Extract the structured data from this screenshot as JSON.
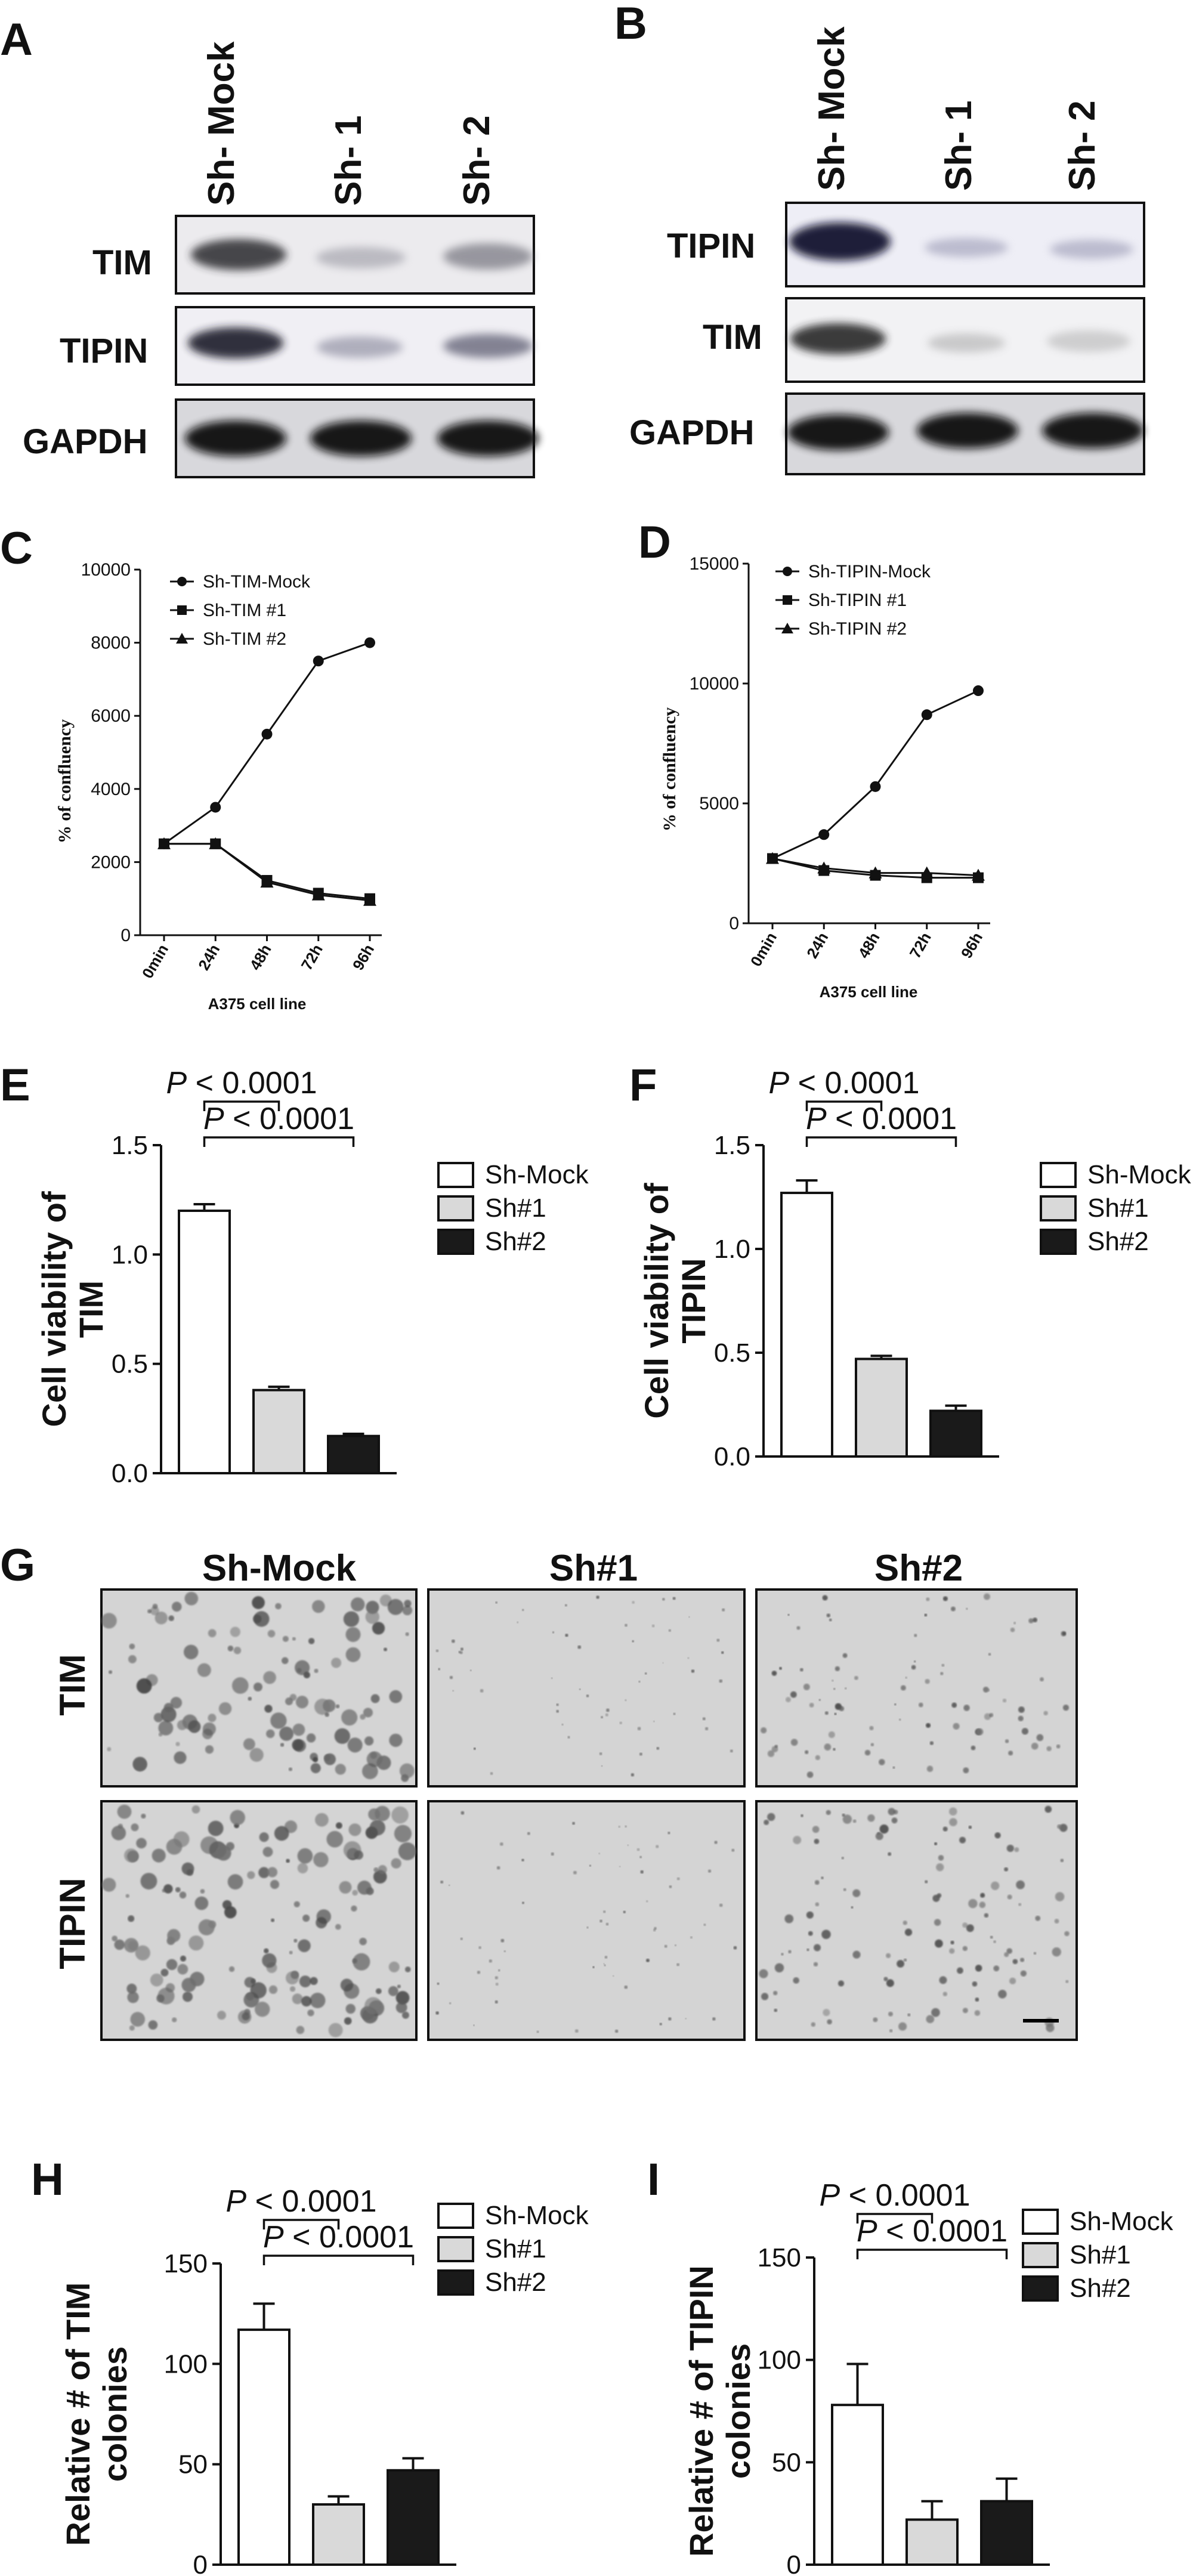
{
  "panels": {
    "A": "A",
    "B": "B",
    "C": "C",
    "D": "D",
    "E": "E",
    "F": "F",
    "G": "G",
    "H": "H",
    "I": "I"
  },
  "blot_A": {
    "lanes": [
      "Sh- Mock",
      "Sh- 1",
      "Sh- 2"
    ],
    "rows": [
      "TIM",
      "TIPIN",
      "GAPDH"
    ]
  },
  "blot_B": {
    "lanes": [
      "Sh- Mock",
      "Sh- 1",
      "Sh- 2"
    ],
    "rows": [
      "TIPIN",
      "TIM",
      "GAPDH"
    ]
  },
  "colony_G": {
    "columns": [
      "Sh-Mock",
      "Sh#1",
      "Sh#2"
    ],
    "rows": [
      "TIM",
      "TIPIN"
    ]
  },
  "colors": {
    "mock": "#ffffff",
    "sh1": "#d9d9d9",
    "sh2": "#1a1a1a",
    "axis": "#111111"
  },
  "chart_data": [
    {
      "id": "C",
      "type": "line",
      "x": [
        "0min",
        "24h",
        "48h",
        "72h",
        "96h"
      ],
      "xlabel": "A375 cell line",
      "ylabel": "% of confluency",
      "ylim": [
        0,
        10000
      ],
      "yticks": [
        "0",
        "2000",
        "4000",
        "6000",
        "8000",
        "10000"
      ],
      "series": [
        {
          "name": "Sh-TIM-Mock",
          "marker": "circle",
          "values": [
            2500,
            3500,
            5500,
            7500,
            8000
          ]
        },
        {
          "name": "Sh-TIM #1",
          "marker": "square",
          "values": [
            2500,
            2500,
            1500,
            1150,
            1000
          ]
        },
        {
          "name": "Sh-TIM #2",
          "marker": "triangle",
          "values": [
            2500,
            2500,
            1450,
            1100,
            950
          ]
        }
      ]
    },
    {
      "id": "D",
      "type": "line",
      "x": [
        "0min",
        "24h",
        "48h",
        "72h",
        "96h"
      ],
      "xlabel": "A375 cell line",
      "ylabel": "% of confluency",
      "ylim": [
        0,
        15000
      ],
      "yticks": [
        "0",
        "5000",
        "10000",
        "15000"
      ],
      "series": [
        {
          "name": "Sh-TIPIN-Mock",
          "marker": "circle",
          "values": [
            2700,
            3700,
            5700,
            8700,
            9700
          ]
        },
        {
          "name": "Sh-TIPIN #1",
          "marker": "square",
          "values": [
            2700,
            2200,
            2000,
            1900,
            1900
          ]
        },
        {
          "name": "Sh-TIPIN #2",
          "marker": "triangle",
          "values": [
            2700,
            2300,
            2100,
            2100,
            2000
          ]
        }
      ]
    },
    {
      "id": "E",
      "type": "bar",
      "categories": [
        "Sh-Mock",
        "Sh#1",
        "Sh#2"
      ],
      "values": [
        1.2,
        0.38,
        0.17
      ],
      "errors": [
        0.03,
        0.015,
        0.01
      ],
      "ylabel_lines": [
        "Cell viability of",
        "TIM"
      ],
      "ylim": [
        0,
        1.5
      ],
      "yticks": [
        "0.0",
        "0.5",
        "1.0",
        "1.5"
      ],
      "legend": [
        "Sh-Mock",
        "Sh#1",
        "Sh#2"
      ],
      "comparisons": [
        {
          "from": 0,
          "to": 1,
          "label_p": "P",
          "label_rest": " < 0.0001"
        },
        {
          "from": 0,
          "to": 2,
          "label_p": "P",
          "label_rest": " < 0.0001"
        }
      ]
    },
    {
      "id": "F",
      "type": "bar",
      "categories": [
        "Sh-Mock",
        "Sh#1",
        "Sh#2"
      ],
      "values": [
        1.27,
        0.47,
        0.22
      ],
      "errors": [
        0.06,
        0.015,
        0.025
      ],
      "ylabel_lines": [
        "Cell viability of",
        "TIPIN"
      ],
      "ylim": [
        0,
        1.5
      ],
      "yticks": [
        "0.0",
        "0.5",
        "1.0",
        "1.5"
      ],
      "legend": [
        "Sh-Mock",
        "Sh#1",
        "Sh#2"
      ],
      "comparisons": [
        {
          "from": 0,
          "to": 1,
          "label_p": "P",
          "label_rest": " < 0.0001"
        },
        {
          "from": 0,
          "to": 2,
          "label_p": "P",
          "label_rest": " < 0.0001"
        }
      ]
    },
    {
      "id": "H",
      "type": "bar",
      "categories": [
        "Sh-Mock",
        "Sh#1",
        "Sh#2"
      ],
      "values": [
        117,
        30,
        47
      ],
      "errors": [
        13,
        4,
        6
      ],
      "ylabel_lines": [
        "Relative # of TIM",
        "colonies"
      ],
      "ylim": [
        0,
        150
      ],
      "yticks": [
        "0",
        "50",
        "100",
        "150"
      ],
      "legend": [
        "Sh-Mock",
        "Sh#1",
        "Sh#2"
      ],
      "comparisons": [
        {
          "from": 0,
          "to": 1,
          "label_p": "P",
          "label_rest": " < 0.0001"
        },
        {
          "from": 0,
          "to": 2,
          "label_p": "P",
          "label_rest": " < 0.0001"
        }
      ]
    },
    {
      "id": "I",
      "type": "bar",
      "categories": [
        "Sh-Mock",
        "Sh#1",
        "Sh#2"
      ],
      "values": [
        78,
        22,
        31
      ],
      "errors": [
        20,
        9,
        11
      ],
      "ylabel_lines": [
        "Relative # of TIPIN",
        "colonies"
      ],
      "ylim": [
        0,
        150
      ],
      "yticks": [
        "0",
        "50",
        "100",
        "150"
      ],
      "legend": [
        "Sh-Mock",
        "Sh#1",
        "Sh#2"
      ],
      "comparisons": [
        {
          "from": 0,
          "to": 1,
          "label_p": "P",
          "label_rest": " < 0.0001"
        },
        {
          "from": 0,
          "to": 2,
          "label_p": "P",
          "label_rest": " < 0.0001"
        }
      ]
    }
  ]
}
